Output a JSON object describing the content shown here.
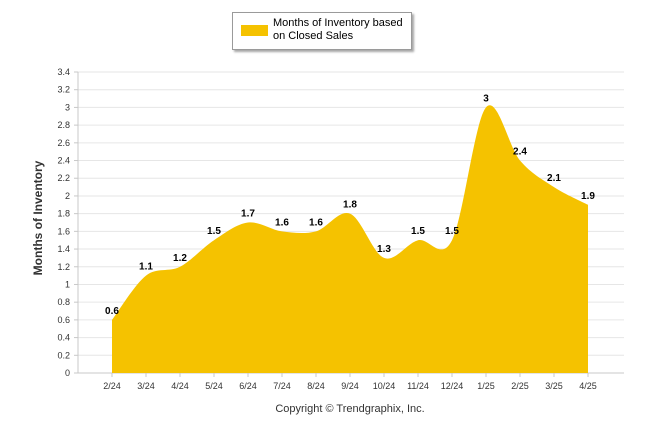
{
  "chart_data": {
    "type": "area",
    "title": "",
    "series": [
      {
        "name": "Months of Inventory based on Closed Sales",
        "color": "#F5C200",
        "values": [
          0.6,
          1.1,
          1.2,
          1.5,
          1.7,
          1.6,
          1.6,
          1.8,
          1.3,
          1.5,
          1.5,
          3,
          2.4,
          2.1,
          1.9
        ]
      }
    ],
    "categories": [
      "2/24",
      "3/24",
      "4/24",
      "5/24",
      "6/24",
      "7/24",
      "8/24",
      "9/24",
      "10/24",
      "11/24",
      "12/24",
      "1/25",
      "2/25",
      "3/25",
      "4/25"
    ],
    "data_labels": [
      "0.6",
      "1.1",
      "1.2",
      "1.5",
      "1.7",
      "1.6",
      "1.6",
      "1.8",
      "1.3",
      "1.5",
      "1.5",
      "3",
      "2.4",
      "2.1",
      "1.9"
    ],
    "xlabel": "Copyright © Trendgraphix, Inc.",
    "ylabel": "Months of Inventory",
    "ylim": [
      0,
      3.4
    ],
    "yticks": [
      "0",
      "0.2",
      "0.4",
      "0.6",
      "0.8",
      "1",
      "1.2",
      "1.4",
      "1.6",
      "1.8",
      "2",
      "2.2",
      "2.4",
      "2.6",
      "2.8",
      "3",
      "3.2",
      "3.4"
    ],
    "grid": true,
    "legend_position": "top-center"
  },
  "legend": {
    "label": "Months of Inventory based on Closed Sales"
  },
  "colors": {
    "area": "#F5C200",
    "grid": "#e6e6e6",
    "axis": "#c8c8c8"
  }
}
